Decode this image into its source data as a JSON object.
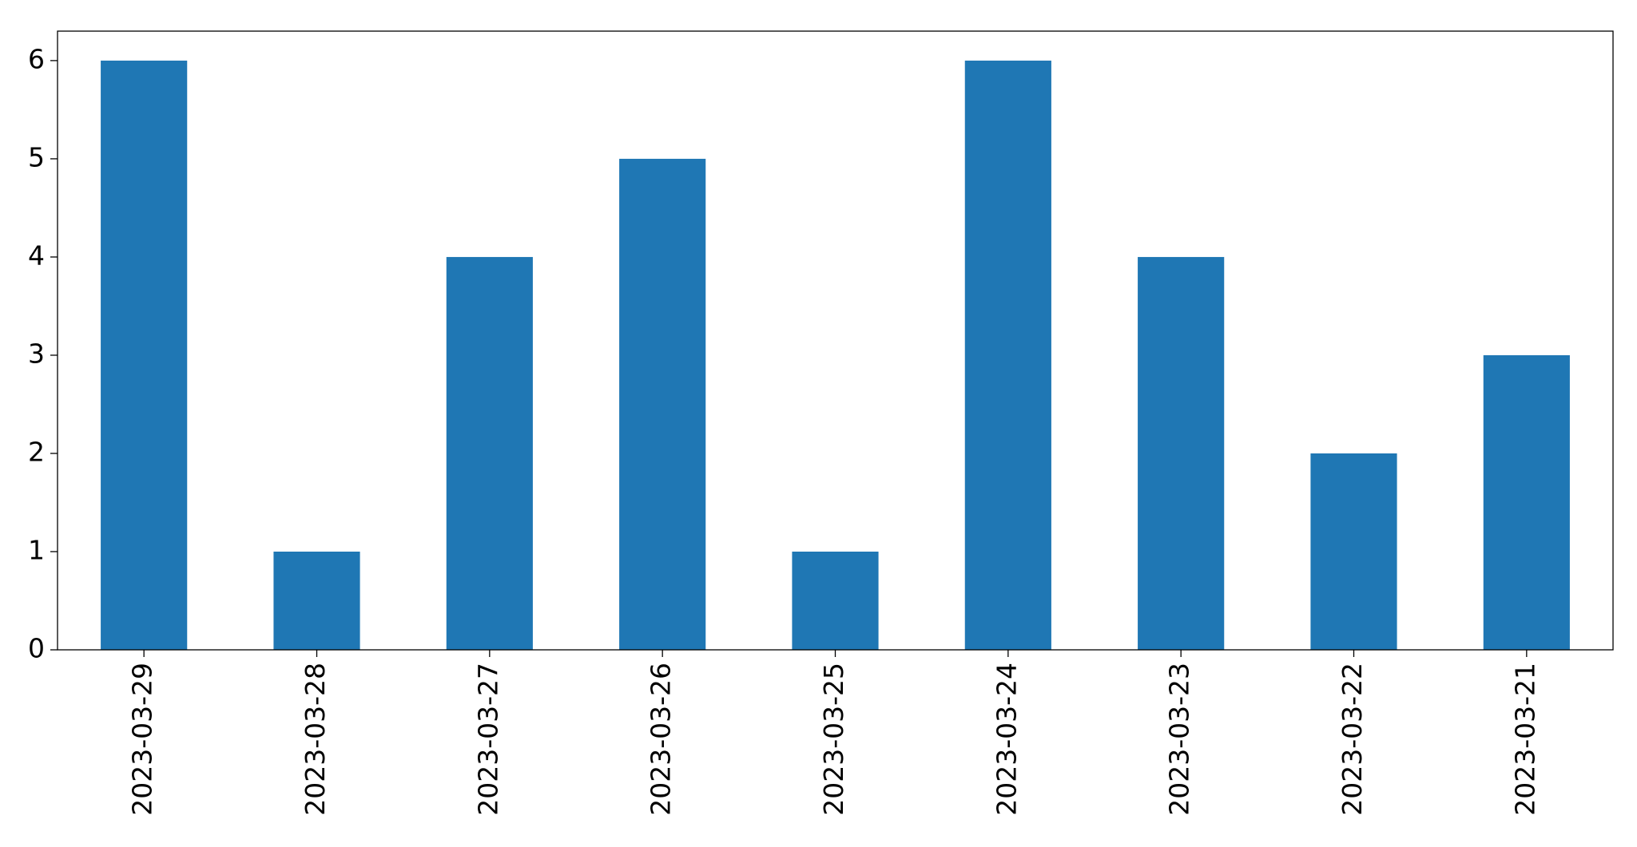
{
  "chart_data": {
    "type": "bar",
    "categories": [
      "2023-03-29",
      "2023-03-28",
      "2023-03-27",
      "2023-03-26",
      "2023-03-25",
      "2023-03-24",
      "2023-03-23",
      "2023-03-22",
      "2023-03-21"
    ],
    "values": [
      6,
      1,
      4,
      5,
      1,
      6,
      4,
      2,
      3
    ],
    "color": "#1f77b4",
    "ylim": [
      0,
      6.3
    ],
    "yticks": [
      0,
      1,
      2,
      3,
      4,
      5,
      6
    ],
    "grid": false
  }
}
